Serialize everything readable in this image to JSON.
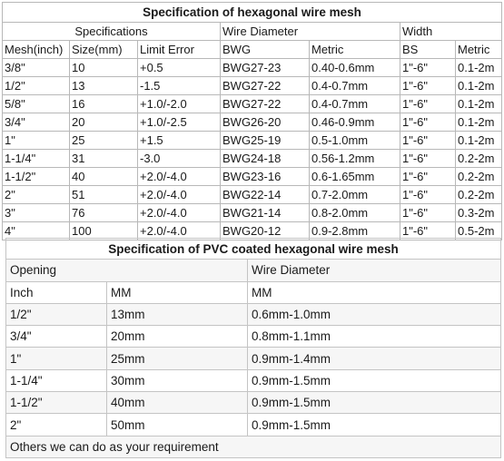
{
  "table1": {
    "title": "Specification of hexagonal wire mesh",
    "groups": {
      "specifications": "Specifications",
      "wire_diameter": "Wire Diameter",
      "width": "Width"
    },
    "headers": [
      "Mesh(inch)",
      "Size(mm)",
      "Limit Error",
      "BWG",
      "Metric",
      "BS",
      "Metric"
    ],
    "rows": [
      [
        "3/8\"",
        "10",
        "+0.5",
        "BWG27-23",
        "0.40-0.6mm",
        "1\"-6\"",
        "0.1-2m"
      ],
      [
        "1/2\"",
        "13",
        "-1.5",
        "BWG27-22",
        "0.4-0.7mm",
        "1\"-6\"",
        "0.1-2m"
      ],
      [
        "5/8\"",
        "16",
        "+1.0/-2.0",
        "BWG27-22",
        "0.4-0.7mm",
        "1\"-6\"",
        "0.1-2m"
      ],
      [
        "3/4\"",
        "20",
        "+1.0/-2.5",
        "BWG26-20",
        "0.46-0.9mm",
        "1\"-6\"",
        "0.1-2m"
      ],
      [
        "1\"",
        "25",
        "+1.5",
        "BWG25-19",
        "0.5-1.0mm",
        "1\"-6\"",
        "0.1-2m"
      ],
      [
        "1-1/4\"",
        "31",
        "-3.0",
        "BWG24-18",
        "0.56-1.2mm",
        "1\"-6\"",
        "0.2-2m"
      ],
      [
        "1-1/2\"",
        "40",
        "+2.0/-4.0",
        "BWG23-16",
        "0.6-1.65mm",
        "1\"-6\"",
        "0.2-2m"
      ],
      [
        "2\"",
        "51",
        "+2.0/-4.0",
        "BWG22-14",
        "0.7-2.0mm",
        "1\"-6\"",
        "0.2-2m"
      ],
      [
        "3\"",
        "76",
        "+2.0/-4.0",
        "BWG21-14",
        "0.8-2.0mm",
        "1\"-6\"",
        "0.3-2m"
      ],
      [
        "4\"",
        "100",
        "+2.0/-4.0",
        "BWG20-12",
        "0.9-2.8mm",
        "1\"-6\"",
        "0.5-2m"
      ]
    ]
  },
  "table2": {
    "title": "Specification of PVC coated hexagonal wire mesh",
    "header1": [
      "Opening",
      "Wire Diameter"
    ],
    "header2": [
      "Inch",
      "MM",
      "MM"
    ],
    "rows": [
      [
        "1/2\"",
        "13mm",
        "0.6mm-1.0mm"
      ],
      [
        "3/4\"",
        "20mm",
        "0.8mm-1.1mm"
      ],
      [
        "1\"",
        "25mm",
        "0.9mm-1.4mm"
      ],
      [
        "1-1/4\"",
        "30mm",
        "0.9mm-1.5mm"
      ],
      [
        "1-1/2\"",
        "40mm",
        "0.9mm-1.5mm"
      ],
      [
        "2\"",
        "50mm",
        "0.9mm-1.5mm"
      ]
    ],
    "footer": "Others we can do as your requirement"
  }
}
